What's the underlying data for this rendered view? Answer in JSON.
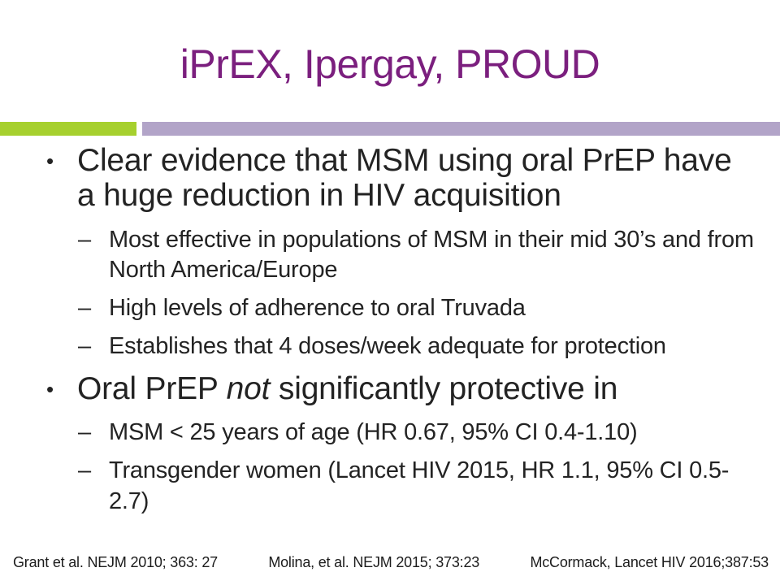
{
  "slide": {
    "title": "iPrEX, Ipergay, PROUD",
    "markers": {
      "level1": "•",
      "level2": "–"
    },
    "bullet1": {
      "text": "Clear evidence that MSM using oral PrEP have a huge reduction in HIV acquisition",
      "sub1": "Most effective in populations of MSM in their mid 30’s and from North America/Europe",
      "sub2": "High levels of adherence to oral Truvada",
      "sub3": "Establishes that 4 doses/week adequate for protection"
    },
    "bullet2": {
      "before_italic": "Oral PrEP ",
      "italic": "not",
      "after_italic": " significantly protective in",
      "sub1": "MSM < 25 years of age (HR 0.67, 95% CI 0.4-1.10)",
      "sub2": "Transgender women (Lancet HIV 2015, HR 1.1, 95% CI 0.5-2.7)"
    },
    "footer": {
      "citation1": "Grant et al. NEJM 2010; 363: 27",
      "citation2": "Molina, et al. NEJM 2015; 373:23",
      "citation3": "McCormack, Lancet HIV 2016;387:53"
    },
    "colors": {
      "title_purple": "#7b1f7e",
      "accent_green": "#a6d02e",
      "accent_lavender": "#b2a4c8",
      "body_text": "#232323"
    }
  }
}
